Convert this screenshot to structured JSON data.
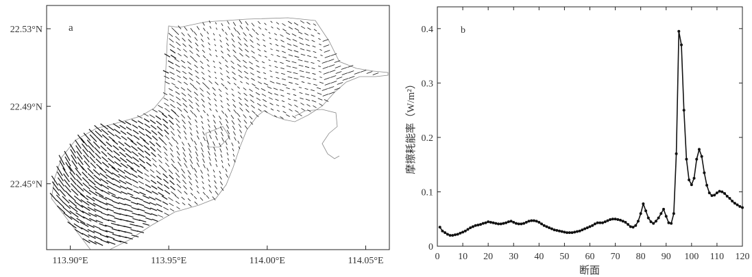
{
  "chart_data": [
    {
      "type": "vector-field",
      "panel_label": "a",
      "x_ticks": [
        "113.90°E",
        "113.95°E",
        "114.00°E",
        "114.05°E"
      ],
      "y_ticks": [
        "22.53°N",
        "22.49°N",
        "22.45°N"
      ],
      "x_tick_values": [
        113.9,
        113.95,
        114.0,
        114.05
      ],
      "y_tick_values": [
        22.53,
        22.49,
        22.45
      ],
      "xlim": [
        113.888,
        114.062
      ],
      "ylim": [
        22.416,
        22.542
      ]
    },
    {
      "type": "line",
      "panel_label": "b",
      "xlabel": "断面",
      "ylabel": "摩擦耗能率（W/m²）",
      "xlim": [
        0,
        120
      ],
      "ylim": [
        0,
        0.44
      ],
      "x_ticks": [
        0,
        10,
        20,
        30,
        40,
        50,
        60,
        70,
        80,
        90,
        100,
        110,
        120
      ],
      "y_ticks": [
        0,
        0.1,
        0.2,
        0.3,
        0.4
      ],
      "y_tick_labels": [
        "0",
        "0.1",
        "0.2",
        "0.3",
        "0.4"
      ],
      "x": [
        1,
        2,
        3,
        4,
        5,
        6,
        7,
        8,
        9,
        10,
        11,
        12,
        13,
        14,
        15,
        16,
        17,
        18,
        19,
        20,
        21,
        22,
        23,
        24,
        25,
        26,
        27,
        28,
        29,
        30,
        31,
        32,
        33,
        34,
        35,
        36,
        37,
        38,
        39,
        40,
        41,
        42,
        43,
        44,
        45,
        46,
        47,
        48,
        49,
        50,
        51,
        52,
        53,
        54,
        55,
        56,
        57,
        58,
        59,
        60,
        61,
        62,
        63,
        64,
        65,
        66,
        67,
        68,
        69,
        70,
        71,
        72,
        73,
        74,
        75,
        76,
        77,
        78,
        79,
        80,
        81,
        82,
        83,
        84,
        85,
        86,
        87,
        88,
        89,
        90,
        91,
        92,
        93,
        94,
        95,
        96,
        97,
        98,
        99,
        100,
        101,
        102,
        103,
        104,
        105,
        106,
        107,
        108,
        109,
        110,
        111,
        112,
        113,
        114,
        115,
        116,
        117,
        118,
        119,
        120
      ],
      "values": [
        0.035,
        0.028,
        0.025,
        0.022,
        0.02,
        0.02,
        0.021,
        0.022,
        0.024,
        0.026,
        0.028,
        0.031,
        0.034,
        0.036,
        0.038,
        0.039,
        0.04,
        0.042,
        0.043,
        0.045,
        0.044,
        0.043,
        0.042,
        0.041,
        0.041,
        0.042,
        0.043,
        0.045,
        0.046,
        0.044,
        0.042,
        0.041,
        0.041,
        0.042,
        0.044,
        0.046,
        0.047,
        0.047,
        0.046,
        0.044,
        0.041,
        0.038,
        0.036,
        0.034,
        0.032,
        0.03,
        0.029,
        0.028,
        0.027,
        0.026,
        0.025,
        0.025,
        0.025,
        0.026,
        0.027,
        0.028,
        0.03,
        0.032,
        0.034,
        0.036,
        0.038,
        0.041,
        0.043,
        0.043,
        0.043,
        0.045,
        0.047,
        0.049,
        0.05,
        0.05,
        0.049,
        0.048,
        0.046,
        0.044,
        0.04,
        0.036,
        0.035,
        0.038,
        0.046,
        0.06,
        0.078,
        0.065,
        0.052,
        0.045,
        0.042,
        0.046,
        0.052,
        0.06,
        0.068,
        0.055,
        0.043,
        0.042,
        0.06,
        0.17,
        0.395,
        0.37,
        0.25,
        0.16,
        0.122,
        0.113,
        0.125,
        0.16,
        0.178,
        0.165,
        0.135,
        0.112,
        0.098,
        0.093,
        0.094,
        0.098,
        0.101,
        0.1,
        0.097,
        0.092,
        0.088,
        0.083,
        0.079,
        0.076,
        0.073,
        0.071
      ]
    }
  ]
}
